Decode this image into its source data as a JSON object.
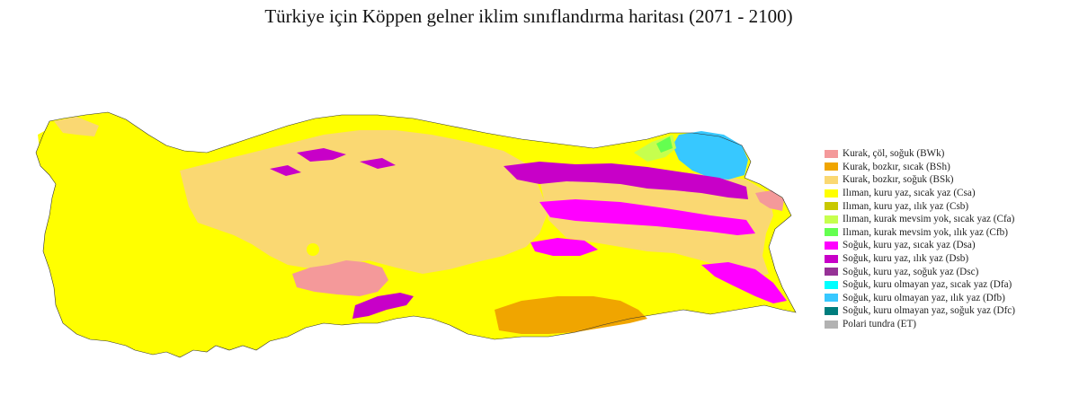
{
  "title": "Türkiye için Köppen gelner iklim sınıflandırma haritası (2071 - 2100)",
  "legend": [
    {
      "label": "Kurak, çöl, soğuk (BWk)",
      "color": "#f4999a"
    },
    {
      "label": "Kurak, bozkır, sıcak (BSh)",
      "color": "#f0a500"
    },
    {
      "label": "Kurak, bozkır, soğuk (BSk)",
      "color": "#fad872"
    },
    {
      "label": "Ilıman, kuru yaz, sıcak yaz (Csa)",
      "color": "#ffff00"
    },
    {
      "label": "Ilıman, kuru yaz, ılık yaz (Csb)",
      "color": "#c8c800"
    },
    {
      "label": "Ilıman, kurak mevsim yok, sıcak yaz (Cfa)",
      "color": "#c6ff4e"
    },
    {
      "label": "Ilıman, kurak mevsim yok, ılık yaz (Cfb)",
      "color": "#64ff50"
    },
    {
      "label": "Soğuk, kuru yaz, sıcak yaz (Dsa)",
      "color": "#ff00ff"
    },
    {
      "label": "Soğuk, kuru yaz, ılık yaz (Dsb)",
      "color": "#c800c8"
    },
    {
      "label": "Soğuk, kuru yaz, soğuk yaz (Dsc)",
      "color": "#963296"
    },
    {
      "label": "Soğuk, kuru olmayan yaz, sıcak yaz (Dfa)",
      "color": "#00ffff"
    },
    {
      "label": "Soğuk, kuru olmayan yaz, ılık yaz (Dfb)",
      "color": "#37c8ff"
    },
    {
      "label": "Soğuk, kuru olmayan yaz, soğuk yaz (Dfc)",
      "color": "#007d7d"
    },
    {
      "label": "Polari tundra (ET)",
      "color": "#b2b2b2"
    }
  ],
  "regions": {
    "land": "#ffff00",
    "bsk": "#fad872",
    "bsh": "#f0a500",
    "bwk": "#f4999a",
    "dsa": "#ff00ff",
    "dsb": "#c800c8",
    "dfb": "#37c8ff",
    "cfa": "#c6ff4e",
    "cfb": "#64ff50"
  }
}
